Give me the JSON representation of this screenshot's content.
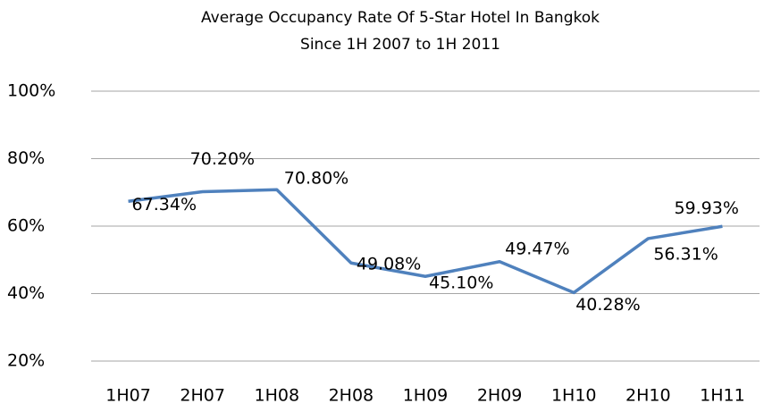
{
  "chart_data": {
    "type": "line",
    "title": "Average Occupancy Rate Of 5-Star Hotel In Bangkok",
    "subtitle": "Since 1H 2007 to 1H 2011",
    "categories": [
      "1H07",
      "2H07",
      "1H08",
      "2H08",
      "1H09",
      "2H09",
      "1H10",
      "2H10",
      "1H11"
    ],
    "series": [
      {
        "name": "Average Occupancy Rate",
        "color": "#4f81bd",
        "values": [
          67.34,
          70.2,
          70.8,
          49.08,
          45.1,
          49.47,
          40.28,
          56.31,
          59.93
        ],
        "value_labels": [
          "67.34%",
          "70.20%",
          "70.80%",
          "49.08%",
          "45.10%",
          "49.47%",
          "40.28%",
          "56.31%",
          "59.93%"
        ]
      }
    ],
    "ylim": [
      20,
      100
    ],
    "yticks": [
      {
        "value": 20,
        "label": "20%"
      },
      {
        "value": 40,
        "label": "40%"
      },
      {
        "value": 60,
        "label": "60%"
      },
      {
        "value": 80,
        "label": "80%"
      },
      {
        "value": 100,
        "label": "100%"
      }
    ],
    "grid": true
  }
}
